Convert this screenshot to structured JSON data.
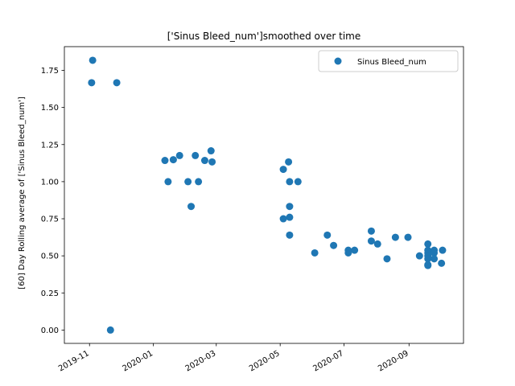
{
  "chart_data": {
    "type": "scatter",
    "title": "['Sinus Bleed_num']smoothed over time",
    "xlabel": "",
    "ylabel": "[60] Day Rolling average of ['Sinus Bleed_num']",
    "xlim": [
      "2019-10-08",
      "2020-10-23"
    ],
    "ylim": [
      -0.09,
      1.91
    ],
    "grid": false,
    "legend": {
      "placement": "top-right",
      "entries": [
        "Sinus Bleed_num"
      ]
    },
    "x_ticks": [
      "2019-11",
      "2020-01",
      "2020-03",
      "2020-05",
      "2020-07",
      "2020-09"
    ],
    "x_tick_dates": [
      "2019-11-01",
      "2020-01-01",
      "2020-03-01",
      "2020-05-01",
      "2020-07-01",
      "2020-09-01"
    ],
    "y_ticks": [
      "0.00",
      "0.25",
      "0.50",
      "0.75",
      "1.00",
      "1.25",
      "1.50",
      "1.75"
    ],
    "y_tick_values": [
      0,
      0.25,
      0.5,
      0.75,
      1.0,
      1.25,
      1.5,
      1.75
    ],
    "series": [
      {
        "name": "Sinus Bleed_num",
        "color": "#1f77b4",
        "points": [
          [
            "2019-11-03",
            1.667
          ],
          [
            "2019-11-04",
            1.818
          ],
          [
            "2019-11-21",
            0.0
          ],
          [
            "2019-11-27",
            1.667
          ],
          [
            "2020-01-12",
            1.143
          ],
          [
            "2020-01-15",
            1.0
          ],
          [
            "2020-01-20",
            1.148
          ],
          [
            "2020-01-26",
            1.176
          ],
          [
            "2020-02-03",
            1.0
          ],
          [
            "2020-02-06",
            0.833
          ],
          [
            "2020-02-10",
            1.176
          ],
          [
            "2020-02-13",
            1.0
          ],
          [
            "2020-02-19",
            1.143
          ],
          [
            "2020-02-25",
            1.208
          ],
          [
            "2020-02-26",
            1.133
          ],
          [
            "2020-05-04",
            1.083
          ],
          [
            "2020-05-04",
            0.75
          ],
          [
            "2020-05-09",
            1.133
          ],
          [
            "2020-05-10",
            1.0
          ],
          [
            "2020-05-10",
            0.833
          ],
          [
            "2020-05-10",
            0.76
          ],
          [
            "2020-05-10",
            0.64
          ],
          [
            "2020-05-18",
            1.0
          ],
          [
            "2020-06-03",
            0.52
          ],
          [
            "2020-06-15",
            0.64
          ],
          [
            "2020-06-21",
            0.57
          ],
          [
            "2020-07-05",
            0.538
          ],
          [
            "2020-07-05",
            0.52
          ],
          [
            "2020-07-11",
            0.538
          ],
          [
            "2020-07-27",
            0.667
          ],
          [
            "2020-07-27",
            0.6
          ],
          [
            "2020-08-02",
            0.58
          ],
          [
            "2020-08-11",
            0.48
          ],
          [
            "2020-08-19",
            0.625
          ],
          [
            "2020-08-31",
            0.625
          ],
          [
            "2020-09-11",
            0.5
          ],
          [
            "2020-09-19",
            0.58
          ],
          [
            "2020-09-19",
            0.538
          ],
          [
            "2020-09-19",
            0.52
          ],
          [
            "2020-09-19",
            0.5
          ],
          [
            "2020-09-19",
            0.48
          ],
          [
            "2020-09-19",
            0.44
          ],
          [
            "2020-09-19",
            0.435
          ],
          [
            "2020-09-25",
            0.538
          ],
          [
            "2020-09-25",
            0.52
          ],
          [
            "2020-09-25",
            0.48
          ],
          [
            "2020-10-02",
            0.45
          ],
          [
            "2020-10-03",
            0.538
          ]
        ]
      }
    ]
  }
}
